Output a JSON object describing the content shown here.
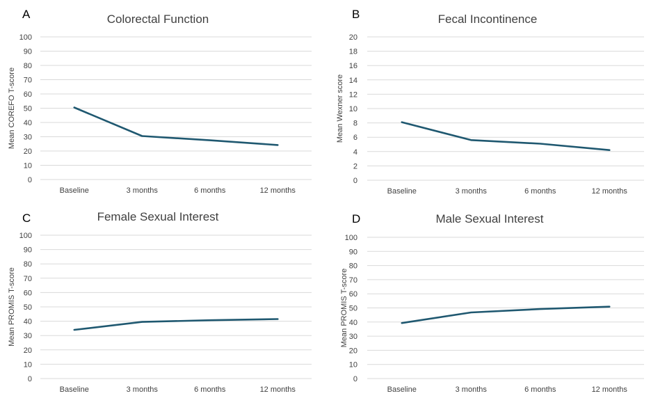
{
  "chart_data": [
    {
      "panel": "A",
      "type": "line",
      "title": "Colorectal Function",
      "xlabel": "",
      "ylabel": "Mean COREFO T-score",
      "categories": [
        "Baseline",
        "3 months",
        "6 months",
        "12 months"
      ],
      "yticks": [
        0,
        10,
        20,
        30,
        40,
        50,
        60,
        70,
        80,
        90,
        100
      ],
      "ylim": [
        0,
        100
      ],
      "grid": true,
      "legend": "none",
      "series": [
        {
          "values": [
            50.5,
            30.5,
            27.5,
            24.2
          ],
          "color": "#1f5870"
        }
      ]
    },
    {
      "panel": "B",
      "type": "line",
      "title": "Fecal Incontinence",
      "xlabel": "",
      "ylabel": "Mean Wexner score",
      "categories": [
        "Baseline",
        "3 months",
        "6 months",
        "12 months"
      ],
      "yticks": [
        0,
        2,
        4,
        6,
        8,
        10,
        12,
        14,
        16,
        18,
        20
      ],
      "ylim": [
        0,
        20
      ],
      "grid": true,
      "legend": "none",
      "series": [
        {
          "values": [
            8.1,
            5.6,
            5.1,
            4.2
          ],
          "color": "#1f5870"
        }
      ]
    },
    {
      "panel": "C",
      "type": "line",
      "title": "Female Sexual Interest",
      "xlabel": "",
      "ylabel": "Mean PROMIS T-score",
      "categories": [
        "Baseline",
        "3 months",
        "6 months",
        "12 months"
      ],
      "yticks": [
        0,
        10,
        20,
        30,
        40,
        50,
        60,
        70,
        80,
        90,
        100
      ],
      "ylim": [
        0,
        100
      ],
      "grid": true,
      "legend": "none",
      "series": [
        {
          "values": [
            34.0,
            39.5,
            40.7,
            41.5
          ],
          "color": "#1f5870"
        }
      ]
    },
    {
      "panel": "D",
      "type": "line",
      "title": "Male Sexual Interest",
      "xlabel": "",
      "ylabel": "Mean PROMIS T-score",
      "categories": [
        "Baseline",
        "3 months",
        "6 months",
        "12 months"
      ],
      "yticks": [
        0,
        10,
        20,
        30,
        40,
        50,
        60,
        70,
        80,
        90,
        100
      ],
      "ylim": [
        0,
        100
      ],
      "grid": true,
      "legend": "none",
      "series": [
        {
          "values": [
            39.3,
            46.8,
            49.2,
            50.9
          ],
          "color": "#1f5870"
        }
      ]
    }
  ]
}
